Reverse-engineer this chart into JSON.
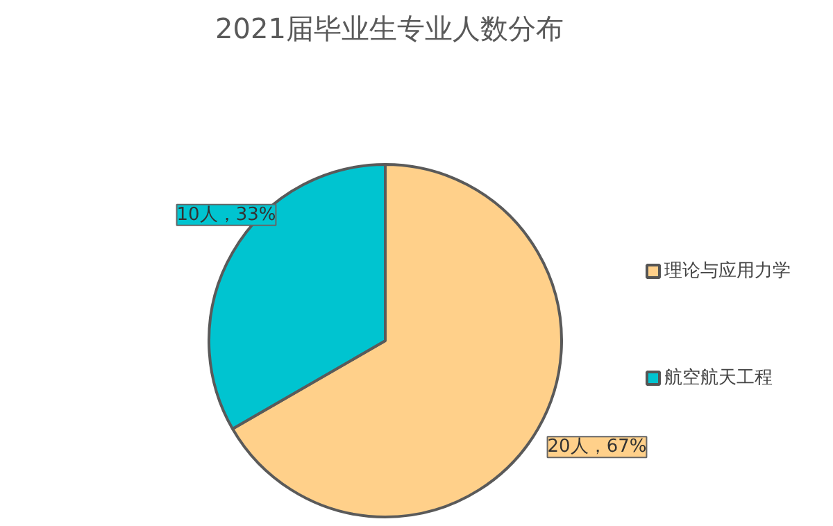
{
  "chart_data": {
    "type": "pie",
    "title": "2021届毕业生专业人数分布",
    "categories": [
      "理论与应用力学",
      "航空航天工程"
    ],
    "values": [
      20,
      10
    ],
    "colors": [
      "#ffd08a",
      "#00c4d0"
    ],
    "value_labels": [
      "20人，67%",
      "10人，33%"
    ],
    "legend": "right"
  }
}
